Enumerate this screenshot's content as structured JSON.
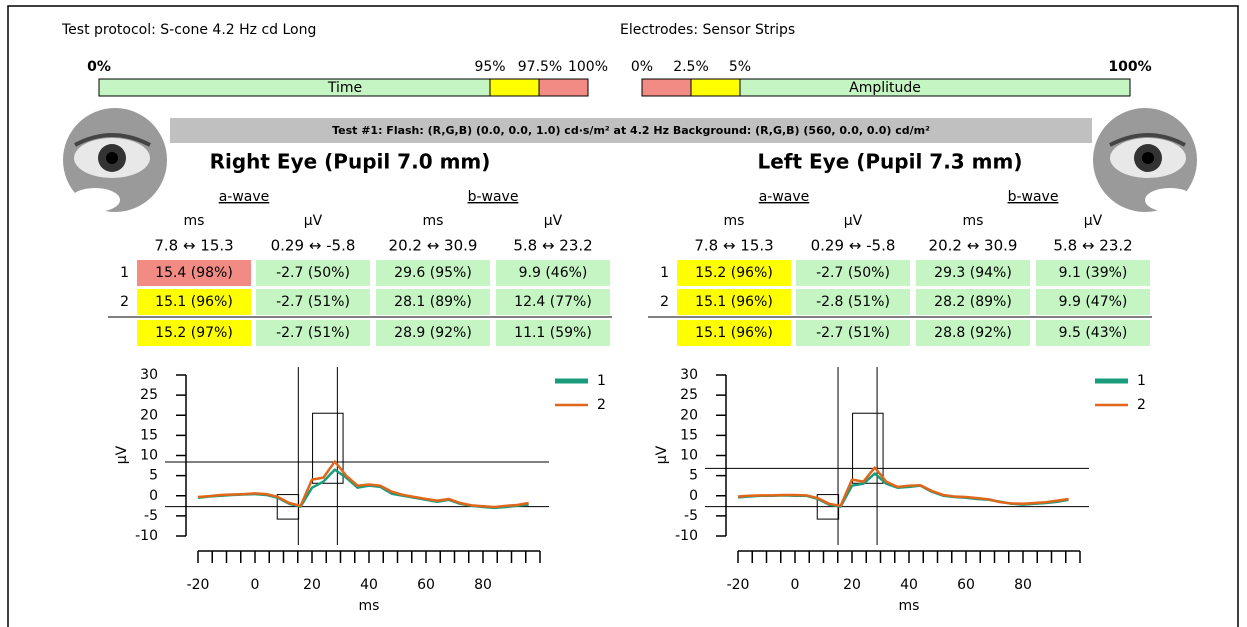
{
  "header": {
    "protocol": "Test protocol: S-cone 4.2 Hz cd Long",
    "electrodes": "Electrodes: Sensor Strips"
  },
  "time_bar": {
    "label": "Time",
    "ticks": [
      "0%",
      "95%",
      "97.5%",
      "100%"
    ]
  },
  "amplitude_bar": {
    "label": "Amplitude",
    "ticks": [
      "0%",
      "2.5%",
      "5%",
      "100%"
    ]
  },
  "test_banner": "Test #1:  Flash: (R,G,B) (0.0, 0.0, 1.0) cd·s/m² at 4.2 Hz   Background: (R,G,B) (560, 0.0, 0.0) cd/m²",
  "eyes": [
    {
      "title": "Right Eye (Pupil 7.0 mm)",
      "groups": [
        "a-wave",
        "b-wave"
      ],
      "units": [
        "ms",
        "μV",
        "ms",
        "μV"
      ],
      "ranges": [
        "7.8 ↔ 15.3",
        "0.29 ↔ -5.8",
        "20.2 ↔ 30.9",
        "5.8 ↔ 23.2"
      ],
      "rows": [
        {
          "label": "1",
          "cells": [
            "15.4 (98%)",
            "-2.7 (50%)",
            "29.6 (95%)",
            "9.9 (46%)"
          ],
          "colors": [
            "#f38b85",
            "#c5f5c3",
            "#c5f5c3",
            "#c5f5c3"
          ]
        },
        {
          "label": "2",
          "cells": [
            "15.1 (96%)",
            "-2.7 (51%)",
            "28.1 (89%)",
            "12.4 (77%)"
          ],
          "colors": [
            "#ffff00",
            "#c5f5c3",
            "#c5f5c3",
            "#c5f5c3"
          ]
        },
        {
          "cells": [
            "15.2 (97%)",
            "-2.7 (51%)",
            "28.9 (92%)",
            "11.1 (59%)"
          ],
          "colors": [
            "#ffff00",
            "#c5f5c3",
            "#c5f5c3",
            "#c5f5c3"
          ]
        }
      ],
      "chart": {
        "type": "line",
        "xlabel": "ms",
        "ylabel": "μV",
        "xlim": [
          -20,
          100
        ],
        "ylim": [
          -10,
          30
        ],
        "xticks": [
          -20,
          0,
          20,
          40,
          60,
          80
        ],
        "yticks": [
          30,
          25,
          20,
          15,
          10,
          5,
          0,
          -5,
          -10
        ],
        "xminorticks": [
          -20,
          -15,
          -10,
          -5,
          0,
          5,
          10,
          15,
          20,
          25,
          30,
          35,
          40,
          45,
          50,
          55,
          60,
          65,
          70,
          75,
          80,
          85,
          90,
          95,
          100
        ],
        "vlines": [
          15.2,
          28.9
        ],
        "hlines": [
          -2.7,
          8.4
        ],
        "boxes": [
          {
            "x": [
              7.8,
              15.3
            ],
            "y": [
              0.29,
              -5.8
            ]
          },
          {
            "x": [
              20.2,
              30.9
            ],
            "y": [
              3.1,
              20.5
            ]
          }
        ],
        "x": [
          -20,
          -16,
          -12,
          -8,
          -4,
          0,
          4,
          8,
          12,
          16,
          20,
          24,
          28,
          32,
          36,
          40,
          44,
          48,
          52,
          56,
          60,
          64,
          68,
          72,
          76,
          80,
          84,
          88,
          92,
          96
        ],
        "series": [
          {
            "name": "1",
            "color": "#1a9c7c",
            "values": [
              -0.5,
              -0.2,
              0,
              0.2,
              0.3,
              0.4,
              0.2,
              -0.5,
              -2,
              -2.7,
              2,
              3.5,
              6.5,
              4.5,
              2,
              2.5,
              2.2,
              0.5,
              0,
              -0.5,
              -1,
              -1.5,
              -1,
              -2,
              -2.5,
              -2.8,
              -3,
              -2.8,
              -2.5,
              -2.2
            ]
          },
          {
            "name": "2",
            "color": "#e0661a",
            "values": [
              -0.3,
              -0.1,
              0.2,
              0.3,
              0.4,
              0.6,
              0.4,
              -0.3,
              -1.8,
              -2.5,
              4,
              4.5,
              8.5,
              5,
              2.5,
              2.8,
              2.5,
              1,
              0.2,
              -0.3,
              -0.8,
              -1.2,
              -0.8,
              -1.8,
              -2.4,
              -2.6,
              -2.8,
              -2.5,
              -2.3,
              -1.8
            ]
          }
        ]
      }
    },
    {
      "title": "Left Eye (Pupil 7.3 mm)",
      "groups": [
        "a-wave",
        "b-wave"
      ],
      "units": [
        "ms",
        "μV",
        "ms",
        "μV"
      ],
      "ranges": [
        "7.8 ↔ 15.3",
        "0.29 ↔ -5.8",
        "20.2 ↔ 30.9",
        "5.8 ↔ 23.2"
      ],
      "rows": [
        {
          "label": "1",
          "cells": [
            "15.2 (96%)",
            "-2.7 (50%)",
            "29.3 (94%)",
            "9.1 (39%)"
          ],
          "colors": [
            "#ffff00",
            "#c5f5c3",
            "#c5f5c3",
            "#c5f5c3"
          ]
        },
        {
          "label": "2",
          "cells": [
            "15.1 (96%)",
            "-2.8 (51%)",
            "28.2 (89%)",
            "9.9 (47%)"
          ],
          "colors": [
            "#ffff00",
            "#c5f5c3",
            "#c5f5c3",
            "#c5f5c3"
          ]
        },
        {
          "cells": [
            "15.1 (96%)",
            "-2.7 (51%)",
            "28.8 (92%)",
            "9.5 (43%)"
          ],
          "colors": [
            "#ffff00",
            "#c5f5c3",
            "#c5f5c3",
            "#c5f5c3"
          ]
        }
      ],
      "chart": {
        "type": "line",
        "xlabel": "ms",
        "ylabel": "μV",
        "xlim": [
          -20,
          100
        ],
        "ylim": [
          -10,
          30
        ],
        "xticks": [
          -20,
          0,
          20,
          40,
          60,
          80
        ],
        "yticks": [
          30,
          25,
          20,
          15,
          10,
          5,
          0,
          -5,
          -10
        ],
        "xminorticks": [
          -20,
          -15,
          -10,
          -5,
          0,
          5,
          10,
          15,
          20,
          25,
          30,
          35,
          40,
          45,
          50,
          55,
          60,
          65,
          70,
          75,
          80,
          85,
          90,
          95,
          100
        ],
        "vlines": [
          15.1,
          28.8
        ],
        "hlines": [
          -2.7,
          6.8
        ],
        "boxes": [
          {
            "x": [
              7.8,
              15.3
            ],
            "y": [
              0.29,
              -5.8
            ]
          },
          {
            "x": [
              20.2,
              30.9
            ],
            "y": [
              3.1,
              20.5
            ]
          }
        ],
        "x": [
          -20,
          -16,
          -12,
          -8,
          -4,
          0,
          4,
          8,
          12,
          16,
          20,
          24,
          28,
          32,
          36,
          40,
          44,
          48,
          52,
          56,
          60,
          64,
          68,
          72,
          76,
          80,
          84,
          88,
          92,
          96
        ],
        "series": [
          {
            "name": "1",
            "color": "#1a9c7c",
            "values": [
              -0.4,
              -0.2,
              0,
              0,
              0.1,
              0,
              0,
              -0.8,
              -2.2,
              -2.7,
              2.5,
              3,
              5.5,
              3,
              2,
              2.2,
              2.5,
              1,
              0,
              -0.3,
              -0.5,
              -0.8,
              -1,
              -1.5,
              -2,
              -2.2,
              -2,
              -1.8,
              -1.5,
              -1
            ]
          },
          {
            "name": "2",
            "color": "#e0661a",
            "values": [
              -0.2,
              0,
              0.1,
              0.1,
              0.2,
              0.2,
              0.1,
              -0.6,
              -2,
              -2.5,
              4,
              3.5,
              7,
              3.5,
              2.2,
              2.5,
              2.6,
              1.2,
              0.2,
              -0.2,
              -0.3,
              -0.6,
              -0.9,
              -1.6,
              -1.9,
              -2,
              -1.8,
              -1.6,
              -1.2,
              -0.8
            ]
          }
        ]
      }
    }
  ]
}
